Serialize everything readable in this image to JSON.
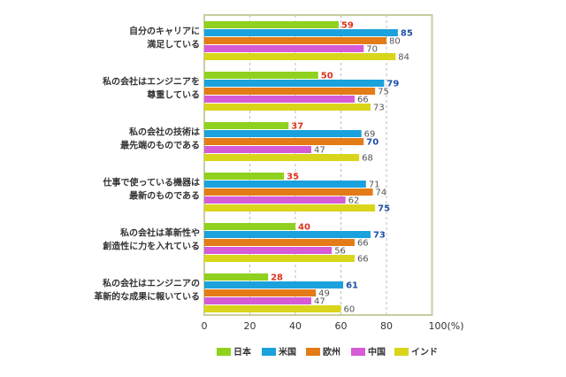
{
  "chart_data": {
    "type": "bar",
    "orientation": "horizontal",
    "categories": [
      [
        "自分のキャリアに",
        "満足している"
      ],
      [
        "私の会社はエンジニアを",
        "尊重している"
      ],
      [
        "私の会社の技術は",
        "最先端のものである"
      ],
      [
        "仕事で使っている機器は",
        "最新のものである"
      ],
      [
        "私の会社は革新性や",
        "創造性に力を入れている"
      ],
      [
        "私の会社はエンジニアの",
        "革新的な成果に報いている"
      ]
    ],
    "series": [
      {
        "name": "日本",
        "color": "#8fd11e",
        "values": [
          59,
          50,
          37,
          35,
          40,
          28
        ]
      },
      {
        "name": "米国",
        "color": "#1ba1dc",
        "values": [
          85,
          79,
          69,
          71,
          73,
          61
        ]
      },
      {
        "name": "欧州",
        "color": "#e37b17",
        "values": [
          80,
          75,
          70,
          74,
          66,
          49
        ]
      },
      {
        "name": "中国",
        "color": "#d65bd6",
        "values": [
          70,
          66,
          47,
          62,
          56,
          47
        ]
      },
      {
        "name": "インド",
        "color": "#d9d51b",
        "values": [
          84,
          73,
          68,
          75,
          66,
          60
        ]
      }
    ],
    "xlim": [
      0,
      100
    ],
    "xticks": [
      "0",
      "20",
      "40",
      "60",
      "80",
      "100(%)"
    ],
    "grid": "vertical dashed",
    "legend": "bottom",
    "label_colors": {
      "japan": "#e0321e",
      "group_max": "#1f4fa8",
      "other": "#555555"
    }
  }
}
